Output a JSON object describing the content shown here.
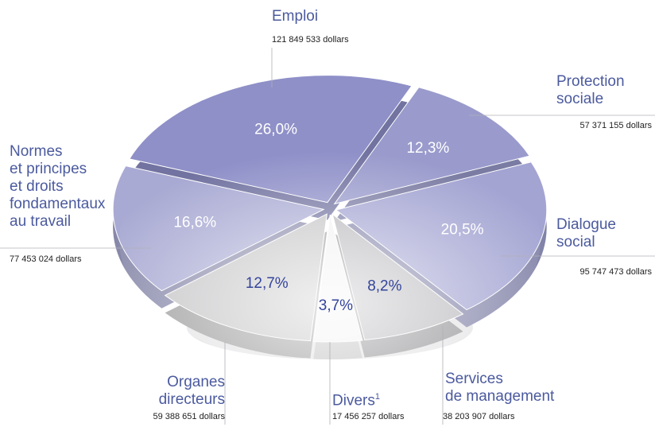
{
  "chart_data": {
    "type": "pie",
    "categories": [
      "Emploi",
      "Protection\nsociale",
      "Dialogue\nsocial",
      "Services\nde management",
      "Divers",
      "Organes\ndirecteurs",
      "Normes\net principes\net droits\nfondamentaux\nau travail"
    ],
    "category_notes": [
      null,
      null,
      null,
      null,
      "1",
      null,
      null
    ],
    "values": [
      26.0,
      12.3,
      20.5,
      8.2,
      3.7,
      12.7,
      16.6
    ],
    "value_labels": [
      "26,0%",
      "12,3%",
      "20,5%",
      "8,2%",
      "3,7%",
      "12,7%",
      "16,6%"
    ],
    "amount_labels": [
      "121 849 533 dollars",
      "57 371 155 dollars",
      "95 747 473 dollars",
      "38 203 907 dollars",
      "17 456 257 dollars",
      "59 388 651 dollars",
      "77 453 024 dollars"
    ],
    "colors": [
      "#8f90c8",
      "#9a9bcc",
      "#a3a4d2",
      "#b9b9bd",
      "#f2f2f4",
      "#c4c4c6",
      "#a9aad3"
    ],
    "label_colors": [
      "#ffffff",
      "#ffffff",
      "#ffffff",
      "#34449a",
      "#34449a",
      "#34449a",
      "#ffffff"
    ]
  }
}
